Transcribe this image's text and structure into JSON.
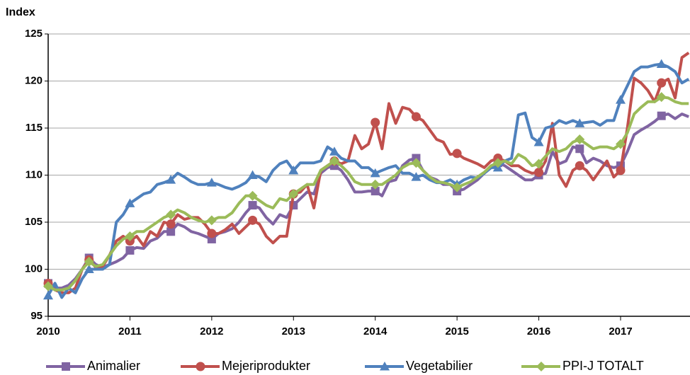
{
  "chart_data": {
    "type": "line",
    "y_label": "Index",
    "categories": [
      "2010",
      null,
      null,
      null,
      null,
      null,
      null,
      null,
      null,
      null,
      null,
      null,
      "2011",
      null,
      null,
      null,
      null,
      null,
      null,
      null,
      null,
      null,
      null,
      null,
      "2012",
      null,
      null,
      null,
      null,
      null,
      null,
      null,
      null,
      null,
      null,
      null,
      "2013",
      null,
      null,
      null,
      null,
      null,
      null,
      null,
      null,
      null,
      null,
      null,
      "2014",
      null,
      null,
      null,
      null,
      null,
      null,
      null,
      null,
      null,
      null,
      null,
      "2015",
      null,
      null,
      null,
      null,
      null,
      null,
      null,
      null,
      null,
      null,
      null,
      "2016",
      null,
      null,
      null,
      null,
      null,
      null,
      null,
      null,
      null,
      null,
      null,
      "2017",
      null,
      null,
      null,
      null,
      null,
      null,
      null,
      null,
      null,
      null
    ],
    "series": [
      {
        "name": "Animalier",
        "color": "#8064a2",
        "marker": "square",
        "values": [
          98.5,
          98,
          98,
          98.3,
          99,
          100,
          101.2,
          100.5,
          100.2,
          100.5,
          100.8,
          101.2,
          102,
          102.3,
          102.2,
          103,
          103.3,
          104,
          104,
          104.8,
          104.5,
          104,
          103.8,
          103.5,
          103.2,
          103.8,
          104,
          104.3,
          105,
          106,
          106.8,
          106.5,
          105.5,
          104.8,
          105.8,
          105.5,
          106.8,
          107.5,
          108.2,
          108,
          110.2,
          110.8,
          111,
          110.5,
          109.5,
          108.2,
          108.2,
          108.3,
          108.3,
          107.8,
          109.3,
          109.5,
          111,
          111.6,
          111.8,
          110.5,
          109.8,
          109.5,
          109,
          109,
          108.3,
          108.5,
          109,
          109.5,
          110.2,
          110.8,
          111.3,
          111,
          110.5,
          110,
          109.5,
          109.5,
          110,
          110.2,
          112.5,
          111.2,
          111.5,
          113,
          112.8,
          111.3,
          111.8,
          111.5,
          111,
          110.8,
          111,
          112.5,
          114.3,
          114.8,
          115.2,
          115.7,
          116.3,
          116.5,
          116,
          116.5,
          116.2
        ]
      },
      {
        "name": "Mejeriprodukter",
        "color": "#c0504d",
        "marker": "circle",
        "values": [
          98.5,
          97.8,
          97.5,
          97.5,
          98,
          100,
          101,
          100.2,
          100.3,
          101.5,
          103,
          103.5,
          103,
          103.5,
          102.5,
          104,
          103.5,
          105,
          104.8,
          105.8,
          105.3,
          105.5,
          105.5,
          104.8,
          103.8,
          103.8,
          104.2,
          104.8,
          103.8,
          104.5,
          105.2,
          104.8,
          103.5,
          102.8,
          103.5,
          103.5,
          108,
          108.2,
          109,
          106.5,
          110.5,
          111,
          111.5,
          111.2,
          111.5,
          114.2,
          112.8,
          113.3,
          115.6,
          112.8,
          117.6,
          115.5,
          117.2,
          117,
          116.2,
          115.8,
          114.8,
          113.8,
          113.5,
          112.2,
          112.3,
          111.8,
          111.5,
          111.2,
          110.8,
          111.5,
          111.8,
          111.5,
          111,
          111,
          110.5,
          110.2,
          110.3,
          111.5,
          115.5,
          110,
          108.8,
          110.5,
          111,
          110.5,
          109.5,
          110.5,
          111.5,
          109.8,
          110.5,
          115,
          120.3,
          119.8,
          119,
          117.8,
          119.8,
          120.2,
          118.2,
          122.5,
          123
        ]
      },
      {
        "name": "Vegetabilier",
        "color": "#4f81bd",
        "marker": "triangle",
        "values": [
          97.2,
          98.5,
          97,
          98,
          97.5,
          99,
          100,
          100,
          100,
          100.5,
          105,
          105.8,
          107,
          107.5,
          108,
          108.2,
          109,
          109.2,
          109.5,
          110.2,
          109.8,
          109.3,
          109,
          109,
          109.2,
          109,
          108.7,
          108.5,
          108.8,
          109.2,
          110,
          109.8,
          109.3,
          110.5,
          111.2,
          111.5,
          110.5,
          111.3,
          111.3,
          111.3,
          111.5,
          113,
          112.5,
          111.8,
          111.5,
          111.5,
          110.8,
          110.8,
          110.2,
          110.5,
          110.8,
          111,
          110.2,
          110.2,
          109.8,
          110,
          109.5,
          109.2,
          109.2,
          109.5,
          109,
          109.5,
          109.8,
          109.7,
          110.2,
          110.8,
          110.8,
          111.5,
          111.8,
          116.4,
          116.6,
          114,
          113.5,
          115,
          115.2,
          115.8,
          115.5,
          115.8,
          115.5,
          115.6,
          115.7,
          115.3,
          115.8,
          115.8,
          118,
          119.5,
          121,
          121.5,
          121.5,
          121.7,
          121.8,
          121.5,
          121,
          119.8,
          120.2
        ]
      },
      {
        "name": "PPI-J TOTALT",
        "color": "#9bbb59",
        "marker": "diamond",
        "values": [
          98.2,
          97.8,
          97.8,
          98,
          98.8,
          100,
          100.8,
          100.3,
          100.5,
          101.5,
          102.5,
          103.2,
          103.5,
          104,
          104,
          104.5,
          105,
          105.5,
          105.8,
          106.3,
          106,
          105.5,
          105.2,
          105,
          105.2,
          105.5,
          105.5,
          106,
          107,
          107.8,
          107.8,
          107.3,
          106.8,
          106.5,
          107.5,
          107.3,
          108,
          108.5,
          109,
          109,
          110.5,
          111,
          111.5,
          111,
          110.3,
          109.3,
          109,
          109,
          109,
          109,
          109.5,
          110,
          110.8,
          111.2,
          111.3,
          110.5,
          109.8,
          109.3,
          109.2,
          109,
          108.7,
          109,
          109.3,
          109.8,
          110.3,
          111,
          111.3,
          111.5,
          111.2,
          112.2,
          111.8,
          111,
          111.2,
          112,
          112.8,
          112.5,
          112.8,
          113.5,
          113.8,
          113.3,
          112.8,
          113,
          113,
          112.8,
          113.3,
          114.5,
          116.5,
          117.2,
          117.8,
          117.8,
          118.3,
          118.2,
          117.8,
          117.6,
          117.6
        ]
      }
    ],
    "ylim": [
      95,
      125
    ],
    "yticks": [
      95,
      100,
      105,
      110,
      115,
      120,
      125
    ],
    "grid": true,
    "legend": "bottom"
  }
}
